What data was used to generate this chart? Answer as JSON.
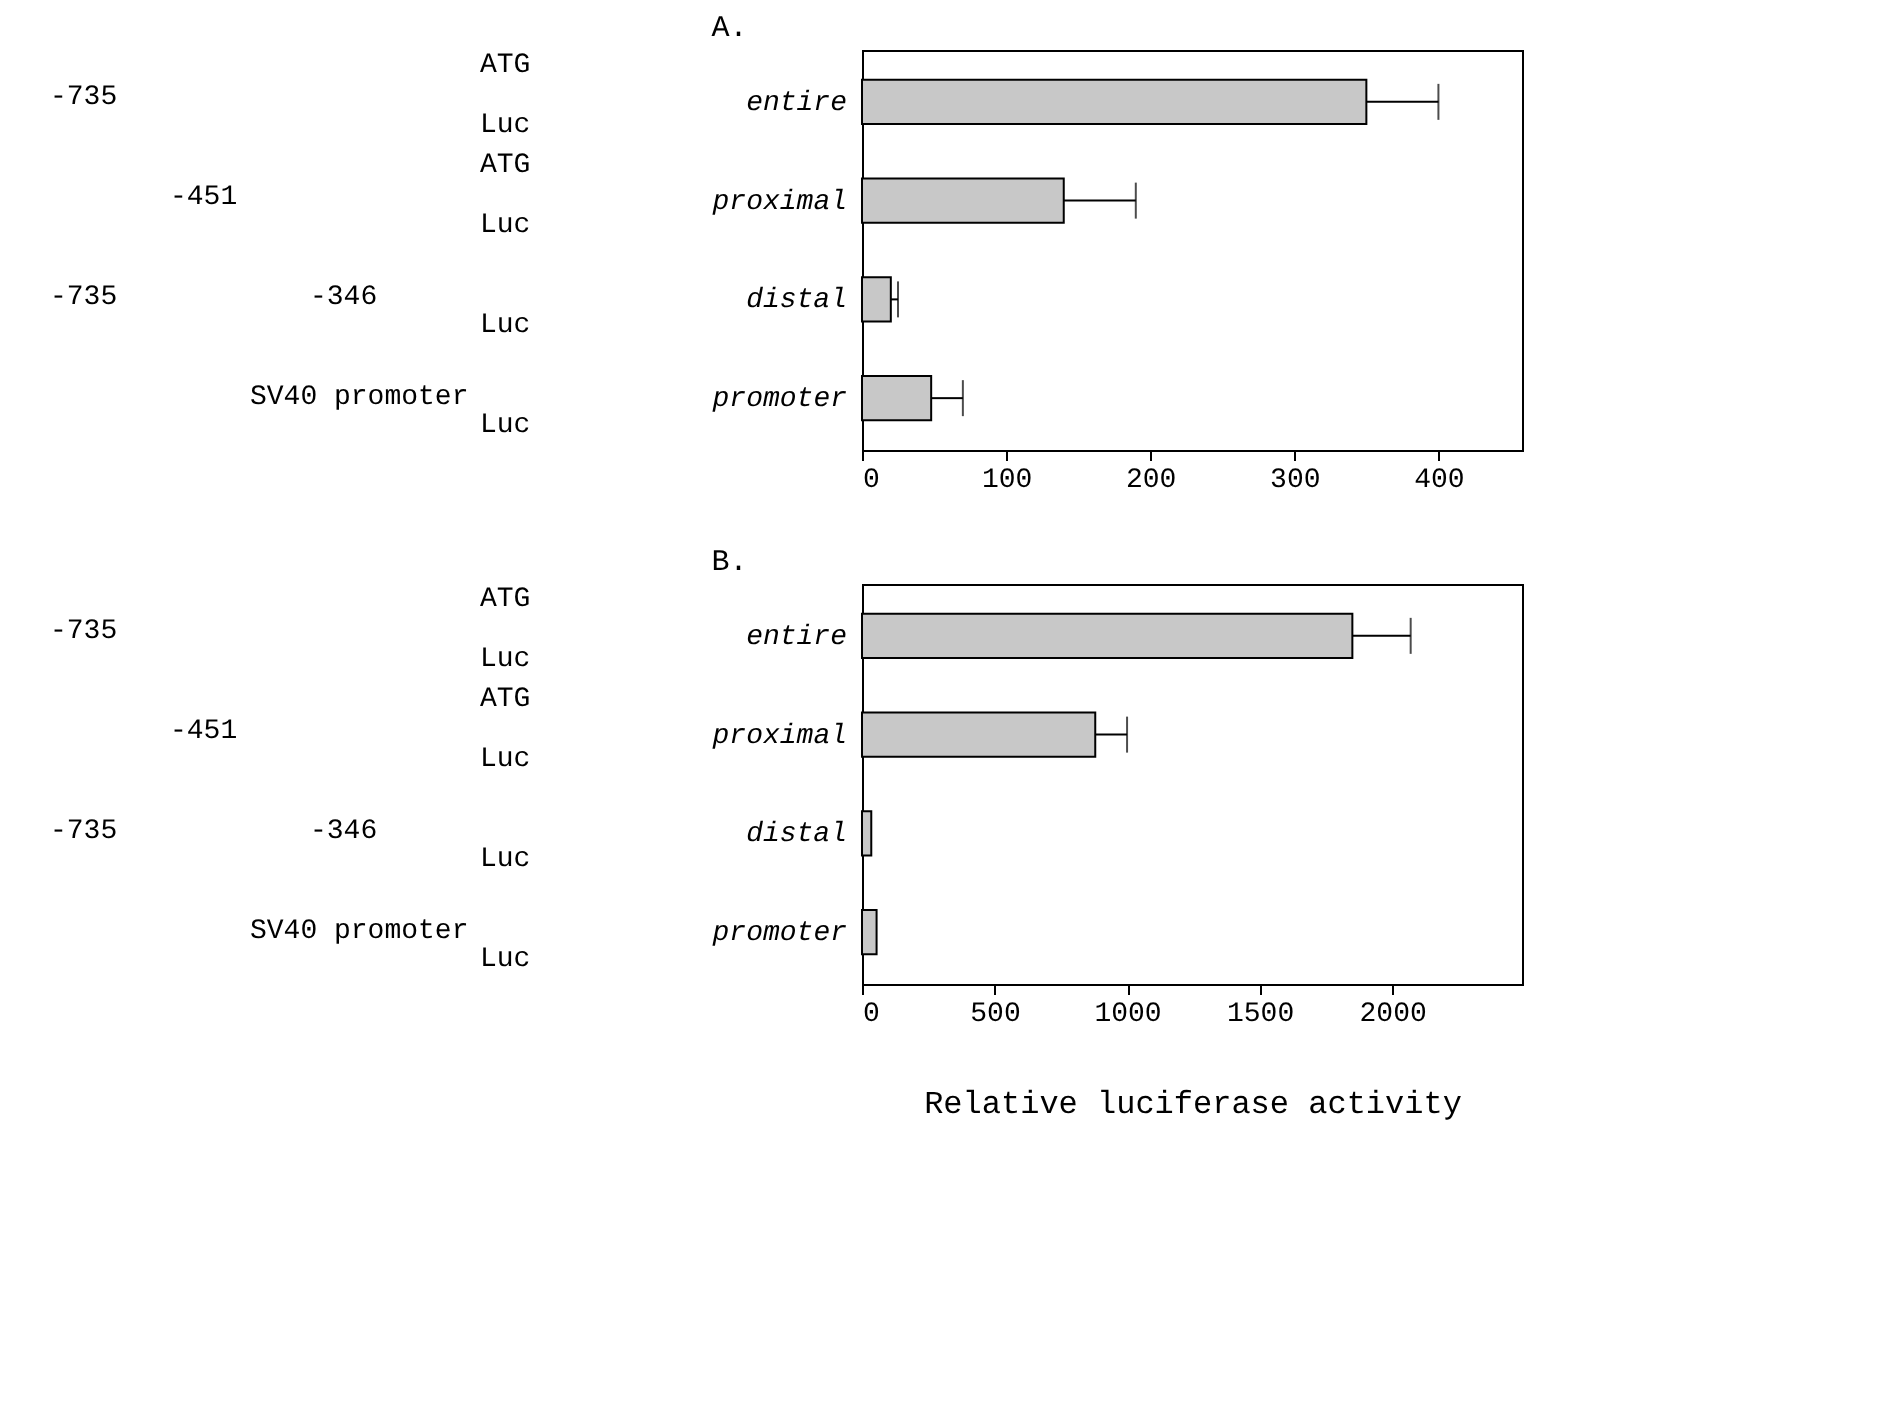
{
  "chart_data": [
    {
      "type": "bar",
      "orientation": "horizontal",
      "title": "A.",
      "categories": [
        "entire",
        "proximal",
        "distal",
        "promoter"
      ],
      "values": [
        350,
        140,
        20,
        48
      ],
      "errors": [
        50,
        50,
        5,
        22
      ],
      "color": "#c8c8c8",
      "xlim": [
        0,
        458
      ],
      "xticks": [
        0,
        100,
        200,
        300,
        400
      ],
      "grid": false,
      "annotations": [
        "-735",
        "ATG",
        "Luc",
        "-451",
        "ATG",
        "Luc",
        "-735",
        "-346",
        "Luc",
        "SV40 promoter",
        "Luc"
      ]
    },
    {
      "type": "bar",
      "orientation": "horizontal",
      "title": "B.",
      "xlabel": "Relative luciferase activity",
      "categories": [
        "entire",
        "proximal",
        "distal",
        "promoter"
      ],
      "values": [
        1850,
        880,
        35,
        55
      ],
      "errors": [
        220,
        120,
        null,
        null
      ],
      "color": "#c8c8c8",
      "xlim": [
        0,
        2490
      ],
      "xticks": [
        0,
        500,
        1000,
        1500,
        2000
      ],
      "grid": false,
      "annotations": [
        "-735",
        "ATG",
        "Luc",
        "-451",
        "ATG",
        "Luc",
        "-735",
        "-346",
        "Luc",
        "SV40 promoter",
        "Luc"
      ]
    }
  ]
}
